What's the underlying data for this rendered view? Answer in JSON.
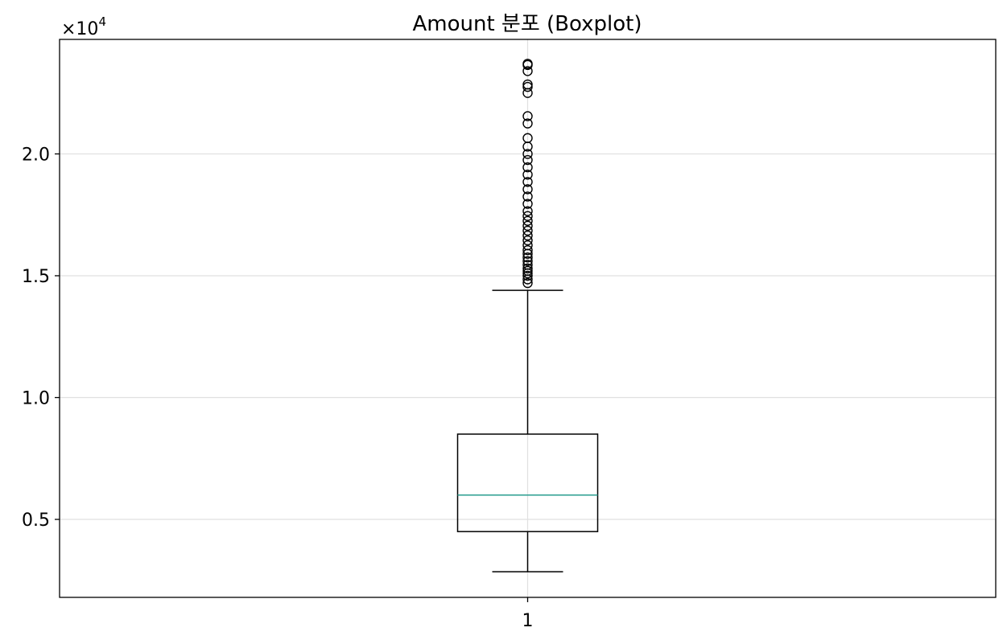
{
  "chart_data": {
    "type": "boxplot",
    "title": "Amount 분포 (Boxplot)",
    "xlabel": "",
    "ylabel": "",
    "x_tick_labels": [
      "1"
    ],
    "y_ticks": [
      0.5,
      1.0,
      1.5,
      2.0
    ],
    "y_tick_labels": [
      "0.5",
      "1.0",
      "1.5",
      "2.0"
    ],
    "y_offset_text": {
      "base": "×10",
      "exponent": "4"
    },
    "y_multiplier": 10000,
    "ylim": [
      1800,
      24700
    ],
    "grid": true,
    "box": {
      "category": "1",
      "whisker_low": 2850,
      "q1": 4500,
      "median": 6000,
      "q3": 8500,
      "whisker_high": 14400,
      "outliers": [
        14700,
        14850,
        15000,
        15100,
        15200,
        15300,
        15450,
        15600,
        15750,
        15900,
        16050,
        16250,
        16450,
        16650,
        16850,
        17050,
        17250,
        17450,
        17650,
        17950,
        18250,
        18550,
        18850,
        19150,
        19450,
        19750,
        20000,
        20300,
        20650,
        21250,
        21550,
        22500,
        22750,
        22850,
        23400,
        23650,
        23700
      ]
    },
    "colors": {
      "median": "#2a9d8f",
      "box": "#000000",
      "grid": "#e0e0e0"
    }
  }
}
